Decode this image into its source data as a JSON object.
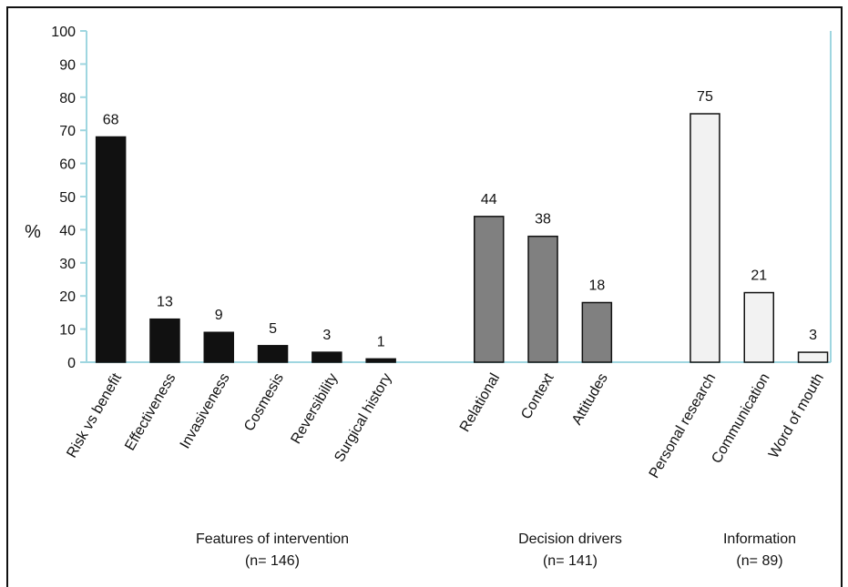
{
  "chart_data": {
    "type": "bar",
    "ylabel": "%",
    "ylim": [
      0,
      100
    ],
    "yticks": [
      0,
      10,
      20,
      30,
      40,
      50,
      60,
      70,
      80,
      90,
      100
    ],
    "axis_color": "#9fd6e0",
    "groups": [
      {
        "name": "Features of intervention",
        "n_label": "(n= 146)",
        "fill": "#111111",
        "categories": [
          "Risk vs benefit",
          "Effectiveness",
          "Invasiveness",
          "Cosmesis",
          "Reversibility",
          "Surgical history"
        ],
        "values": [
          68,
          13,
          9,
          5,
          3,
          1
        ]
      },
      {
        "name": "Decision drivers",
        "n_label": "(n= 141)",
        "fill": "#808080",
        "categories": [
          "Relational",
          "Context",
          "Attitudes"
        ],
        "values": [
          44,
          38,
          18
        ]
      },
      {
        "name": "Information",
        "n_label": "(n= 89)",
        "fill": "#f2f2f2",
        "categories": [
          "Personal research",
          "Communication",
          "Word of mouth"
        ],
        "values": [
          75,
          21,
          3
        ]
      }
    ]
  }
}
